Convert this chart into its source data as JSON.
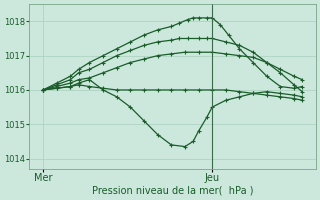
{
  "xlabel": "Pression niveau de la mer(  hPa )",
  "xtick_labels": [
    "Mer",
    "Jeu"
  ],
  "xtick_positions": [
    0.05,
    0.67
  ],
  "ylim": [
    1013.7,
    1018.5
  ],
  "yticks": [
    1014,
    1015,
    1016,
    1017,
    1018
  ],
  "bg_color": "#cce8dc",
  "grid_color": "#aacfbf",
  "line_color": "#1a5c2a",
  "vline_x": 0.67,
  "figsize": [
    3.2,
    2.0
  ],
  "dpi": 100,
  "series": [
    {
      "x": [
        0.05,
        0.1,
        0.15,
        0.18,
        0.22,
        0.27,
        0.32,
        0.37,
        0.42,
        0.47,
        0.52,
        0.57,
        0.6,
        0.62,
        0.65,
        0.67,
        0.72,
        0.77,
        0.82,
        0.87,
        0.92,
        0.97,
        1.0
      ],
      "y": [
        1016.0,
        1016.05,
        1016.1,
        1016.2,
        1016.3,
        1016.0,
        1015.8,
        1015.5,
        1015.1,
        1014.7,
        1014.4,
        1014.35,
        1014.5,
        1014.8,
        1015.2,
        1015.5,
        1015.7,
        1015.8,
        1015.9,
        1015.95,
        1015.9,
        1015.85,
        1015.8
      ]
    },
    {
      "x": [
        0.05,
        0.1,
        0.15,
        0.18,
        0.22,
        0.27,
        0.32,
        0.37,
        0.42,
        0.47,
        0.52,
        0.57,
        0.62,
        0.67,
        0.72,
        0.77,
        0.82,
        0.87,
        0.92,
        0.97,
        1.0
      ],
      "y": [
        1016.0,
        1016.05,
        1016.1,
        1016.15,
        1016.1,
        1016.05,
        1016.0,
        1016.0,
        1016.0,
        1016.0,
        1016.0,
        1016.0,
        1016.0,
        1016.0,
        1016.0,
        1015.95,
        1015.9,
        1015.85,
        1015.8,
        1015.75,
        1015.7
      ]
    },
    {
      "x": [
        0.05,
        0.1,
        0.15,
        0.18,
        0.22,
        0.27,
        0.32,
        0.37,
        0.42,
        0.47,
        0.52,
        0.57,
        0.62,
        0.67,
        0.72,
        0.77,
        0.82,
        0.87,
        0.92,
        0.97,
        1.0
      ],
      "y": [
        1016.0,
        1016.1,
        1016.2,
        1016.3,
        1016.35,
        1016.5,
        1016.65,
        1016.8,
        1016.9,
        1017.0,
        1017.05,
        1017.1,
        1017.1,
        1017.1,
        1017.05,
        1017.0,
        1016.95,
        1016.8,
        1016.6,
        1016.4,
        1016.3
      ]
    },
    {
      "x": [
        0.05,
        0.1,
        0.15,
        0.18,
        0.22,
        0.27,
        0.32,
        0.37,
        0.42,
        0.47,
        0.52,
        0.55,
        0.58,
        0.62,
        0.65,
        0.67,
        0.72,
        0.77,
        0.82,
        0.87,
        0.92,
        0.97,
        1.0
      ],
      "y": [
        1016.0,
        1016.15,
        1016.3,
        1016.5,
        1016.6,
        1016.8,
        1017.0,
        1017.15,
        1017.3,
        1017.4,
        1017.45,
        1017.5,
        1017.5,
        1017.5,
        1017.5,
        1017.5,
        1017.4,
        1017.3,
        1017.1,
        1016.8,
        1016.5,
        1016.15,
        1015.95
      ]
    },
    {
      "x": [
        0.05,
        0.1,
        0.15,
        0.18,
        0.22,
        0.27,
        0.32,
        0.37,
        0.42,
        0.47,
        0.52,
        0.55,
        0.58,
        0.6,
        0.62,
        0.65,
        0.67,
        0.7,
        0.73,
        0.77,
        0.82,
        0.87,
        0.92,
        0.97,
        1.0
      ],
      "y": [
        1016.0,
        1016.2,
        1016.4,
        1016.6,
        1016.8,
        1017.0,
        1017.2,
        1017.4,
        1017.6,
        1017.75,
        1017.85,
        1017.95,
        1018.05,
        1018.1,
        1018.1,
        1018.1,
        1018.1,
        1017.9,
        1017.6,
        1017.2,
        1016.8,
        1016.4,
        1016.1,
        1016.05,
        1016.1
      ]
    }
  ]
}
